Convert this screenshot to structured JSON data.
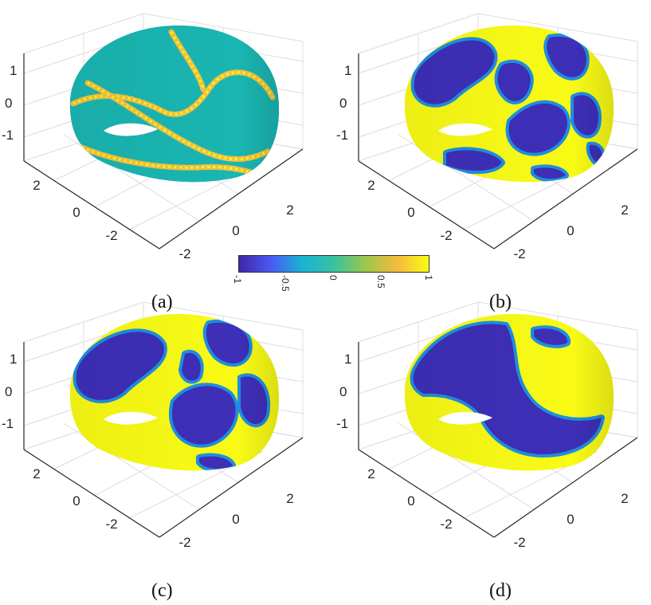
{
  "chart_data": {
    "type": "heatmap",
    "colormap": "parula",
    "colorbar": {
      "ticks": [
        "-1",
        "-0.5",
        "0",
        "0.5",
        "1"
      ],
      "min": -1,
      "max": 1,
      "colors": [
        "#3e26a8",
        "#4a59f5",
        "#1ab3d4",
        "#38c1a1",
        "#9bc84a",
        "#f5ba3d",
        "#f9fb15"
      ]
    },
    "grid": true,
    "axes": {
      "z_ticks": [
        "1",
        "0",
        "-1"
      ],
      "y_ticks": [
        "2",
        "0",
        "-2"
      ],
      "x_ticks": [
        "2",
        "0",
        "-2"
      ]
    },
    "panels": [
      {
        "label": "(a)",
        "surface": "double torus",
        "dominant_value": 0,
        "pattern": "thin interface bands"
      },
      {
        "label": "(b)",
        "surface": "double torus",
        "pattern": "fine labyrinth of phases -1 and 1"
      },
      {
        "label": "(c)",
        "surface": "double torus",
        "pattern": "coarsened labyrinth of phases -1 and 1"
      },
      {
        "label": "(d)",
        "surface": "double torus",
        "pattern": "large separated domains of -1 and 1"
      }
    ]
  },
  "colors": {
    "yellow": "#f9fb15",
    "blue": "#3e2fb8",
    "teal": "#1ab6b2",
    "mid": "#1e8fe0",
    "orange": "#f3c244"
  }
}
